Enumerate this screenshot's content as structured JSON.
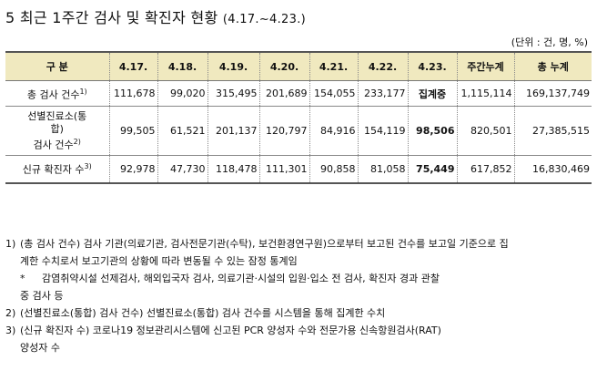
{
  "title": {
    "main": "5 최근 1주간 검사 및 확진자 현황",
    "period": "(4.17.~4.23.)"
  },
  "unit": "(단위 : 건, 명, %)",
  "table": {
    "headers": [
      "구 분",
      "4.17.",
      "4.18.",
      "4.19.",
      "4.20.",
      "4.21.",
      "4.22.",
      "4.23.",
      "주간누계",
      "총 누계"
    ],
    "rows": [
      {
        "label": "총 검사 건수",
        "sup": "1)",
        "cells": [
          "111,678",
          "99,020",
          "315,495",
          "201,689",
          "154,055",
          "233,177",
          "집계중",
          "1,115,114",
          "169,137,749"
        ]
      },
      {
        "label_line1": "선별진료소(통",
        "label_line2": "합)",
        "label_line3": "검사 건수",
        "sup": "2)",
        "cells": [
          "99,505",
          "61,521",
          "201,137",
          "120,797",
          "84,916",
          "154,119",
          "98,506",
          "820,501",
          "27,385,515"
        ]
      },
      {
        "label": "신규 확진자 수",
        "sup": "3)",
        "cells": [
          "92,978",
          "47,730",
          "118,478",
          "111,301",
          "90,858",
          "81,058",
          "75,449",
          "617,852",
          "16,830,469"
        ]
      }
    ]
  },
  "notes": {
    "n1_num": "1)",
    "n1_line1": "(총 검사 건수) 검사 기관(의료기관, 검사전문기관(수탁), 보건환경연구원)으로부터 보고된 건수를 보고일 기준으로 집",
    "n1_line2": "계한 수치로서 보고기관의 상황에 따라 변동될 수 있는 잠정 통계임",
    "n1_sub_mark": "*",
    "n1_sub_line1": "감염취약시설 선제검사, 해외입국자 검사, 의료기관·시설의 입원·입소 전 검사, 확진자 경과 관찰",
    "n1_sub_line2": "중 검사 등",
    "n2_num": "2)",
    "n2_text": "(선별진료소(통합) 검사 건수) 선별진료소(통합) 검사 건수를 시스템을 통해 집계한 수치",
    "n3_num": "3)",
    "n3_line1": "(신규 확진자 수) 코로나19 정보관리시스템에 신고된 PCR 양성자 수와 전문가용 신속항원검사(RAT)",
    "n3_line2": "양성자 수"
  }
}
